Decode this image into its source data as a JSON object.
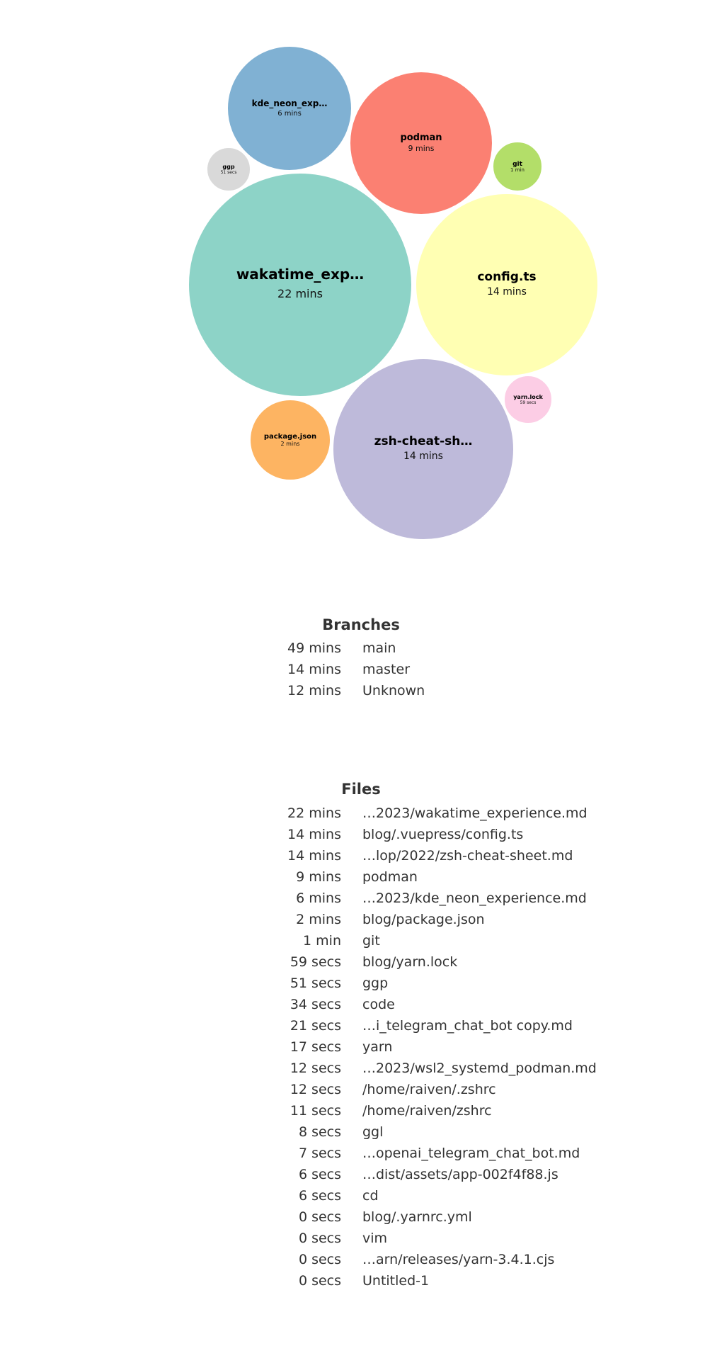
{
  "chart_data": {
    "type": "bubble",
    "bubbles": [
      {
        "label": "wakatime_exp…",
        "duration": "22 mins",
        "minutes": 22,
        "color": "#8dd3c7"
      },
      {
        "label": "config.ts",
        "duration": "14 mins",
        "minutes": 14,
        "color": "#ffffb3"
      },
      {
        "label": "zsh-cheat-sh…",
        "duration": "14 mins",
        "minutes": 14,
        "color": "#bebada"
      },
      {
        "label": "podman",
        "duration": "9 mins",
        "minutes": 9,
        "color": "#fb8072"
      },
      {
        "label": "kde_neon_exp…",
        "duration": "6 mins",
        "minutes": 6,
        "color": "#80b1d3"
      },
      {
        "label": "package.json",
        "duration": "2 mins",
        "minutes": 2,
        "color": "#fdb462"
      },
      {
        "label": "git",
        "duration": "1 min",
        "minutes": 1,
        "color": "#b3de69"
      },
      {
        "label": "yarn.lock",
        "duration": "59 secs",
        "minutes": 0.98,
        "color": "#fccde5"
      },
      {
        "label": "ggp",
        "duration": "51 secs",
        "minutes": 0.85,
        "color": "#d9d9d9"
      }
    ]
  },
  "branches": {
    "title": "Branches",
    "rows": [
      {
        "duration": "49 mins",
        "name": "main"
      },
      {
        "duration": "14 mins",
        "name": "master"
      },
      {
        "duration": "12 mins",
        "name": "Unknown"
      }
    ]
  },
  "files": {
    "title": "Files",
    "rows": [
      {
        "duration": "22 mins",
        "name": "…2023/wakatime_experience.md"
      },
      {
        "duration": "14 mins",
        "name": "blog/.vuepress/config.ts"
      },
      {
        "duration": "14 mins",
        "name": "…lop/2022/zsh-cheat-sheet.md"
      },
      {
        "duration": "9 mins",
        "name": "podman"
      },
      {
        "duration": "6 mins",
        "name": "…2023/kde_neon_experience.md"
      },
      {
        "duration": "2 mins",
        "name": "blog/package.json"
      },
      {
        "duration": "1 min",
        "name": "git"
      },
      {
        "duration": "59 secs",
        "name": "blog/yarn.lock"
      },
      {
        "duration": "51 secs",
        "name": "ggp"
      },
      {
        "duration": "34 secs",
        "name": "code"
      },
      {
        "duration": "21 secs",
        "name": "…i_telegram_chat_bot copy.md"
      },
      {
        "duration": "17 secs",
        "name": "yarn"
      },
      {
        "duration": "12 secs",
        "name": "…2023/wsl2_systemd_podman.md"
      },
      {
        "duration": "12 secs",
        "name": "/home/raiven/.zshrc"
      },
      {
        "duration": "11 secs",
        "name": "/home/raiven/zshrc"
      },
      {
        "duration": "8 secs",
        "name": "ggl"
      },
      {
        "duration": "7 secs",
        "name": "…openai_telegram_chat_bot.md"
      },
      {
        "duration": "6 secs",
        "name": "…dist/assets/app-002f4f88.js"
      },
      {
        "duration": "6 secs",
        "name": "cd"
      },
      {
        "duration": "0 secs",
        "name": "blog/.yarnrc.yml"
      },
      {
        "duration": "0 secs",
        "name": "vim"
      },
      {
        "duration": "0 secs",
        "name": "…arn/releases/yarn-3.4.1.cjs"
      },
      {
        "duration": "0 secs",
        "name": "Untitled-1"
      }
    ]
  }
}
